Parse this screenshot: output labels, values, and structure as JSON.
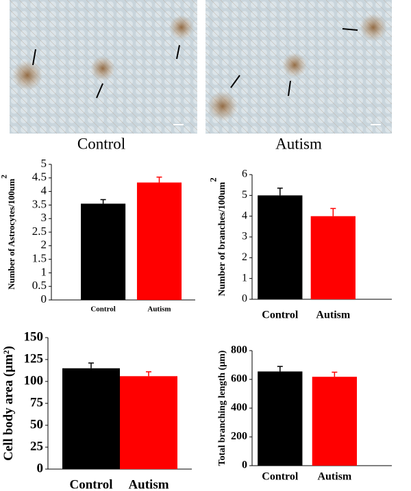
{
  "image_captions": [
    "Control",
    "Autism"
  ],
  "chart_data": [
    {
      "type": "bar",
      "ylabel": "Number of Astrocytes/100um",
      "ylabel_sup": "2",
      "categories": [
        "Control",
        "Autism"
      ],
      "values": [
        3.55,
        4.33
      ],
      "errors": [
        0.15,
        0.2
      ],
      "colors": [
        "#000000",
        "#ff0000"
      ],
      "ylim": [
        0,
        5
      ],
      "yticks": [
        0,
        0.5,
        1,
        1.5,
        2,
        2.5,
        3,
        3.5,
        4,
        4.5,
        5
      ]
    },
    {
      "type": "bar",
      "ylabel": "Number of branches/100um",
      "ylabel_sup": "2",
      "categories": [
        "Control",
        "Autism"
      ],
      "values": [
        5.0,
        4.0
      ],
      "errors": [
        0.35,
        0.37
      ],
      "colors": [
        "#000000",
        "#ff0000"
      ],
      "ylim": [
        0,
        6
      ],
      "yticks": [
        0,
        1,
        2,
        3,
        4,
        5,
        6
      ]
    },
    {
      "type": "bar",
      "ylabel": "Cell body area (µm²)",
      "categories": [
        "Control",
        "Autism"
      ],
      "values": [
        115,
        106
      ],
      "errors": [
        6,
        5
      ],
      "colors": [
        "#000000",
        "#ff0000"
      ],
      "ylim": [
        0,
        150
      ],
      "yticks": [
        0,
        25,
        50,
        75,
        100,
        125,
        150
      ]
    },
    {
      "type": "bar",
      "ylabel": "Total branching length (µm)",
      "categories": [
        "Control",
        "Autism"
      ],
      "values": [
        655,
        618
      ],
      "errors": [
        35,
        32
      ],
      "colors": [
        "#000000",
        "#ff0000"
      ],
      "ylim": [
        0,
        800
      ],
      "yticks": [
        0,
        200,
        400,
        600,
        800
      ]
    }
  ]
}
